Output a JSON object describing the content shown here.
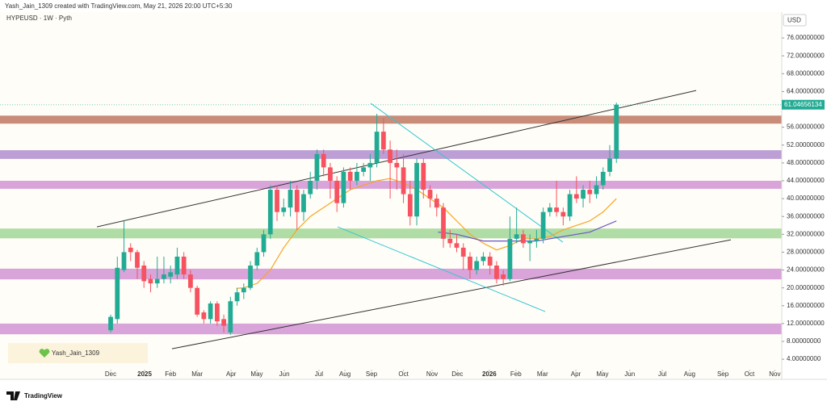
{
  "header": {
    "credit": "Yash_Jain_1309 created with TradingView.com, May 21, 2026 20:00 UTC+5:30",
    "logo": "TradingView"
  },
  "chart_data": {
    "type": "candlestick",
    "title": "HYPEUSD · 1W · Pyth",
    "currency": "USD",
    "watermark": "Yash_Jain_1309",
    "up_color": "#22ab94",
    "down_color": "#f7525f",
    "xlim": [
      -16.63,
      100.85
    ],
    "ylim": [
      -0.5,
      81.8
    ],
    "xticks": [
      {
        "value": 0,
        "label": "Dec"
      },
      {
        "value": 5.1,
        "label": "2025"
      },
      {
        "value": 9.0,
        "label": "Feb"
      },
      {
        "value": 13.0,
        "label": "Mar"
      },
      {
        "value": 18.1,
        "label": "Apr"
      },
      {
        "value": 21.96,
        "label": "May"
      },
      {
        "value": 26.1,
        "label": "Jun"
      },
      {
        "value": 31.3,
        "label": "Jul"
      },
      {
        "value": 35.2,
        "label": "Aug"
      },
      {
        "value": 39.2,
        "label": "Sep"
      },
      {
        "value": 44.0,
        "label": "Oct"
      },
      {
        "value": 48.3,
        "label": "Nov"
      },
      {
        "value": 52.1,
        "label": "Dec"
      },
      {
        "value": 56.9,
        "label": "2026"
      },
      {
        "value": 60.9,
        "label": "Feb"
      },
      {
        "value": 64.9,
        "label": "Mar"
      },
      {
        "value": 69.9,
        "label": "Apr"
      },
      {
        "value": 73.9,
        "label": "May"
      },
      {
        "value": 78.0,
        "label": "Jun"
      },
      {
        "value": 82.9,
        "label": "Jul"
      },
      {
        "value": 87.0,
        "label": "Aug"
      },
      {
        "value": 92.0,
        "label": "Sep"
      },
      {
        "value": 96.0,
        "label": "Oct"
      },
      {
        "value": 99.8,
        "label": "Nov"
      }
    ],
    "yticks": [
      {
        "value": 4,
        "label": "4.00000000"
      },
      {
        "value": 8,
        "label": "8.00000000"
      },
      {
        "value": 12,
        "label": "12.00000000"
      },
      {
        "value": 16,
        "label": "16.00000000"
      },
      {
        "value": 20,
        "label": "20.00000000"
      },
      {
        "value": 24,
        "label": "24.00000000"
      },
      {
        "value": 28,
        "label": "28.00000000"
      },
      {
        "value": 32,
        "label": "32.00000000"
      },
      {
        "value": 36,
        "label": "36.00000000"
      },
      {
        "value": 40,
        "label": "40.00000000"
      },
      {
        "value": 44,
        "label": "44.00000000"
      },
      {
        "value": 48,
        "label": "48.00000000"
      },
      {
        "value": 52,
        "label": "52.00000000"
      },
      {
        "value": 56,
        "label": "56.00000000"
      },
      {
        "value": 64,
        "label": "64.00000000"
      },
      {
        "value": 68,
        "label": "68.00000000"
      },
      {
        "value": 72,
        "label": "72.00000000"
      },
      {
        "value": 76,
        "label": "76.00000000"
      }
    ],
    "last_price": {
      "value": 61.04656134,
      "label": "61.04656134",
      "color": "#22ab94"
    },
    "x": [
      0,
      1,
      2,
      3,
      4,
      5,
      6,
      7,
      8,
      9,
      10,
      11,
      12,
      13,
      14,
      15,
      16,
      17,
      18,
      19,
      20,
      21,
      22,
      23,
      24,
      25,
      26,
      27,
      28,
      29,
      30,
      31,
      32,
      33,
      34,
      35,
      36,
      37,
      38,
      39,
      40,
      41,
      42,
      43,
      44,
      45,
      46,
      47,
      48,
      49,
      50,
      51,
      52,
      53,
      54,
      55,
      56,
      57,
      58,
      59,
      60,
      61,
      62,
      63,
      64,
      65,
      66,
      67,
      68,
      69,
      70,
      71,
      72,
      73,
      74,
      75,
      76
    ],
    "open": [
      10.5,
      13,
      24,
      29,
      28,
      25,
      22,
      21,
      22,
      22.5,
      23,
      27,
      23,
      20,
      14.5,
      13,
      16.5,
      13,
      10,
      17,
      19,
      20,
      25,
      28,
      32,
      42,
      37,
      38,
      42,
      37,
      41,
      44,
      50,
      47,
      44,
      39,
      46,
      44,
      46,
      47,
      48,
      55,
      51,
      48,
      47,
      41,
      36,
      48,
      42,
      40,
      38,
      31,
      30,
      29,
      27,
      24,
      26,
      27,
      25,
      23,
      22,
      31,
      32,
      30,
      30.5,
      31,
      37,
      38,
      37,
      36,
      41,
      40,
      42,
      41,
      43,
      46,
      49
    ],
    "high": [
      14,
      27,
      35,
      30,
      28.5,
      26,
      23,
      27,
      27,
      25,
      29,
      28,
      24,
      20.5,
      15,
      17,
      17,
      14,
      18,
      20,
      21,
      26,
      29,
      33,
      43,
      43,
      40,
      44,
      43,
      42,
      46,
      51,
      51,
      48,
      45,
      47,
      47,
      48,
      48,
      50,
      59,
      58,
      53,
      51,
      50,
      44,
      49,
      49,
      43,
      41,
      39,
      33,
      32,
      30,
      28,
      27,
      28,
      28,
      26,
      24,
      36,
      38,
      33,
      32,
      33,
      38,
      39,
      44,
      38,
      42,
      45,
      43,
      44,
      45,
      47,
      52,
      61.5
    ],
    "low": [
      10,
      12,
      23.5,
      26,
      22,
      20,
      19,
      20,
      21,
      21,
      22,
      22,
      19,
      13.5,
      12,
      12,
      11.5,
      10,
      9.5,
      16,
      17.5,
      19.5,
      24,
      27,
      31,
      35,
      36,
      36,
      33,
      35,
      40,
      42,
      45,
      40,
      37,
      38,
      42,
      43,
      45,
      44,
      47,
      50,
      40,
      42,
      39,
      34,
      34,
      40,
      38,
      36,
      29,
      29,
      28,
      24,
      22,
      23,
      25,
      23,
      21,
      20.5,
      21.5,
      30,
      29,
      26,
      29,
      30,
      36,
      36,
      34,
      35,
      39,
      38,
      39,
      40,
      42,
      45,
      48
    ],
    "close": [
      13.5,
      24.5,
      28,
      28,
      24.5,
      21.5,
      21,
      22,
      23,
      23.5,
      27,
      23,
      20,
      14,
      13,
      16.5,
      12.5,
      11.5,
      17,
      19,
      20,
      25,
      28,
      32,
      42,
      37,
      38,
      42,
      37,
      41,
      44,
      50,
      47,
      44,
      39,
      46,
      44,
      46,
      47,
      48,
      55,
      51,
      48,
      47,
      41,
      36,
      48,
      42,
      40,
      38,
      31,
      30,
      29,
      27,
      24,
      26,
      27,
      25,
      22,
      22,
      31,
      32,
      30,
      30.5,
      31,
      37,
      38,
      37,
      36,
      41,
      40,
      42,
      41,
      43,
      46,
      49,
      61.05
    ],
    "zones": [
      {
        "low": 56.8,
        "high": 58.6,
        "color": "#b5654f"
      },
      {
        "low": 48.9,
        "high": 50.85,
        "color": "#a57fc9"
      },
      {
        "low": 42.2,
        "high": 44.0,
        "color": "#cc86cf"
      },
      {
        "low": 31.1,
        "high": 33.3,
        "color": "#96d28a"
      },
      {
        "low": 21.9,
        "high": 24.3,
        "color": "#cc86cf"
      },
      {
        "low": 9.6,
        "high": 12.0,
        "color": "#cc86cf"
      }
    ],
    "trendlines": [
      {
        "x": [
          -2.06,
          87.98
        ],
        "y": [
          33.67,
          64.24
        ],
        "color": "#333333"
      },
      {
        "x": [
          9.22,
          93.2
        ],
        "y": [
          6.35,
          30.77
        ],
        "color": "#333333"
      },
      {
        "x": [
          39.08,
          67.96
        ],
        "y": [
          61.35,
          30.24
        ],
        "color": "#33c7d3"
      },
      {
        "x": [
          34.1,
          65.3
        ],
        "y": [
          33.67,
          14.68
        ],
        "color": "#33c7d3"
      }
    ],
    "indicators": [
      {
        "color": "#f5a623",
        "x": [
          18.9,
          20,
          22,
          24,
          26,
          28,
          30,
          32,
          34,
          36,
          38,
          40,
          42,
          44,
          46,
          48,
          50,
          52,
          54,
          56,
          58,
          60,
          62,
          64,
          66,
          68,
          70,
          72,
          74,
          76
        ],
        "y": [
          19.9,
          20,
          21,
          24,
          29,
          33,
          36,
          38,
          40,
          42,
          43,
          44,
          44.5,
          43.5,
          42,
          40,
          38,
          35,
          32,
          30,
          28.5,
          29.5,
          31,
          31,
          31.5,
          33,
          34,
          35,
          37,
          40
        ]
      },
      {
        "color": "#6b55c9",
        "x": [
          49.2,
          52,
          56,
          60,
          64,
          68,
          72,
          76
        ],
        "y": [
          32.5,
          32,
          30.5,
          30.5,
          30.5,
          31.5,
          32.5,
          35
        ]
      }
    ]
  }
}
